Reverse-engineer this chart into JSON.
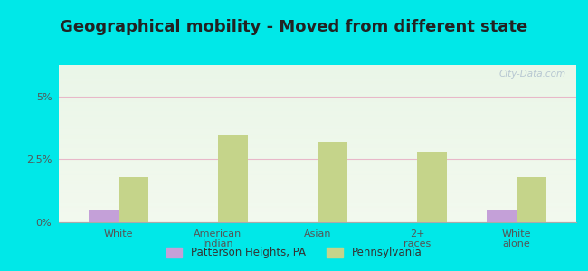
{
  "title": "Geographical mobility - Moved from different state",
  "categories": [
    "White",
    "American\nIndian",
    "Asian",
    "2+\nraces",
    "White\nalone"
  ],
  "patterson_values": [
    0.5,
    0.0,
    0.0,
    0.0,
    0.5
  ],
  "pennsylvania_values": [
    1.8,
    3.5,
    3.2,
    2.8,
    1.8
  ],
  "patterson_color": "#c4a0d8",
  "pennsylvania_color": "#c5d48a",
  "ylim": [
    0,
    6.25
  ],
  "ytick_labels": [
    "0%",
    "2.5%",
    "5%"
  ],
  "outer_bg": "#00e8e8",
  "bar_width": 0.3,
  "legend_labels": [
    "Patterson Heights, PA",
    "Pennsylvania"
  ],
  "grid_color": "#e8b8c8",
  "title_fontsize": 13
}
